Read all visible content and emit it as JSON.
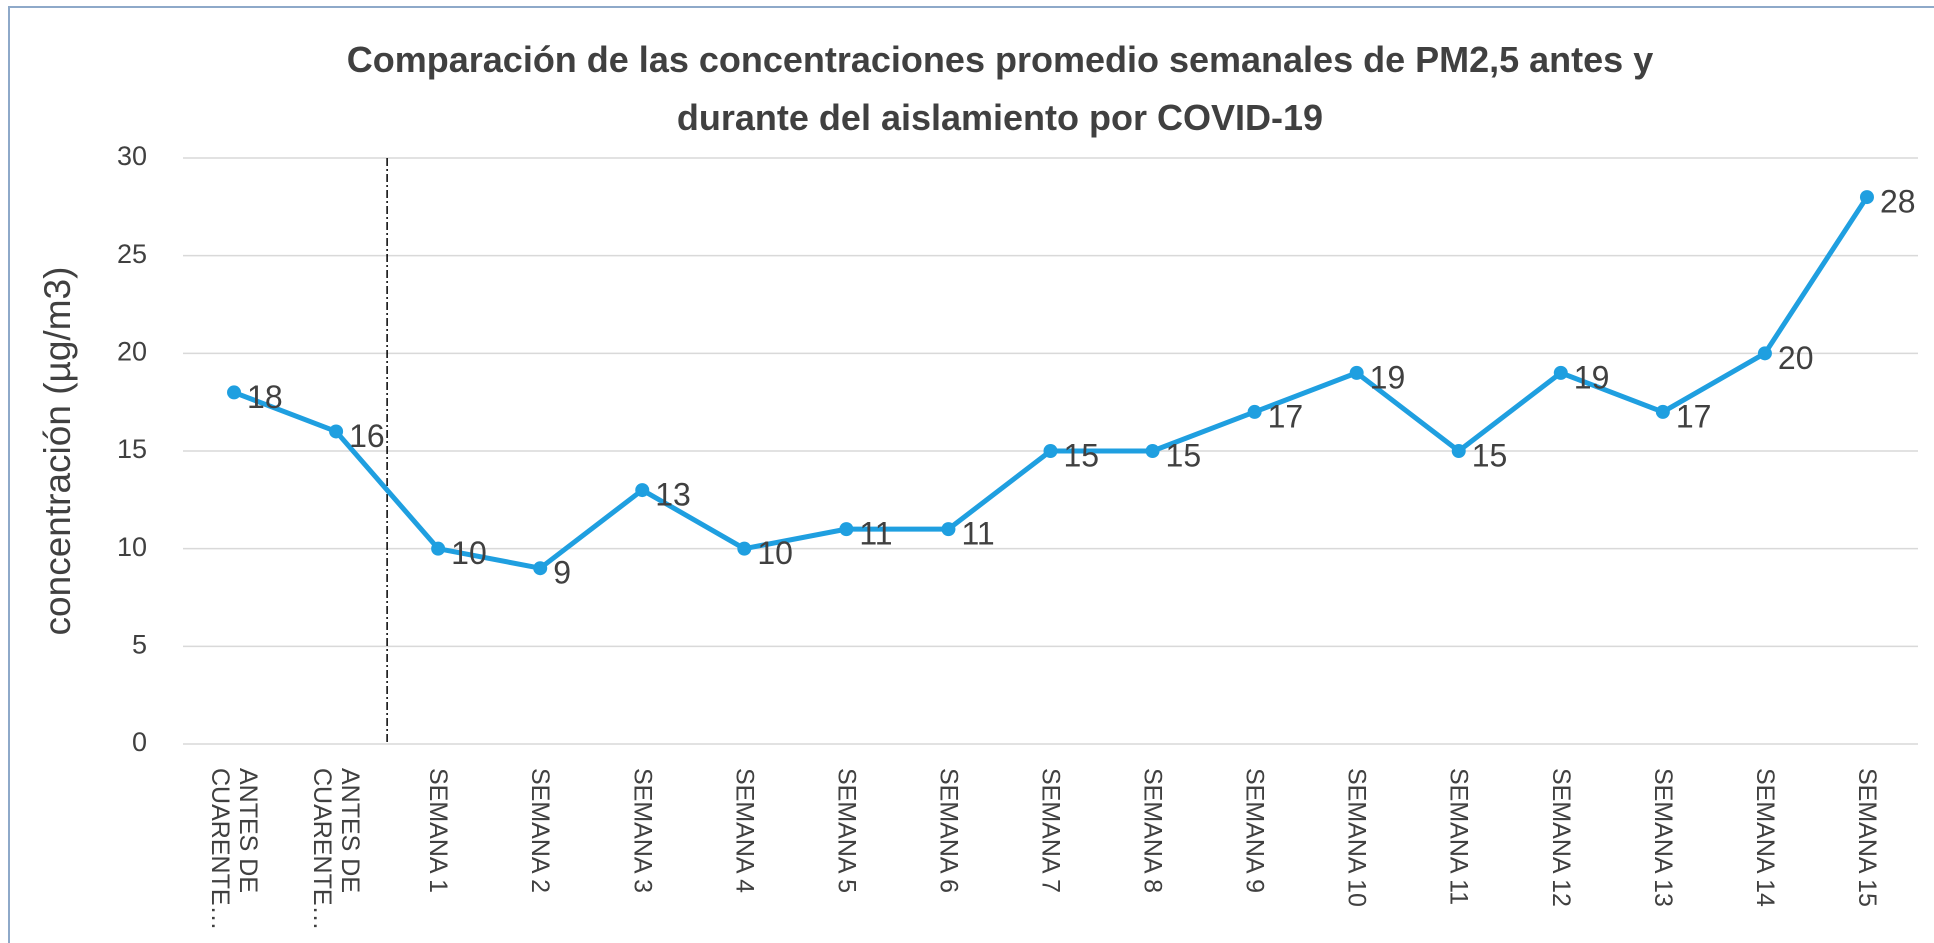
{
  "chart_data": {
    "type": "line",
    "title": "Comparación de las concentraciones promedio semanales de PM2,5 antes y durante del aislamiento por COVID-19",
    "y_label": "concentración (µg/m3)",
    "categories": [
      "ANTES DE CUARENTE…",
      "ANTES DE CUARENTE…",
      "SEMANA 1",
      "SEMANA 2",
      "SEMANA 3",
      "SEMANA 4",
      "SEMANA 5",
      "SEMANA 6",
      "SEMANA 7",
      "SEMANA 8",
      "SEMANA 9",
      "SEMANA 10",
      "SEMANA 11",
      "SEMANA 12",
      "SEMANA 13",
      "SEMANA 14",
      "SEMANA 15"
    ],
    "values": [
      18,
      16,
      10,
      9,
      13,
      10,
      11,
      11,
      15,
      15,
      17,
      19,
      15,
      19,
      17,
      20,
      28
    ],
    "color": "#1f9fe0",
    "ylim": [
      0,
      30
    ],
    "yticks": [
      0,
      5,
      10,
      15,
      20,
      25,
      30
    ],
    "grid": true
  }
}
